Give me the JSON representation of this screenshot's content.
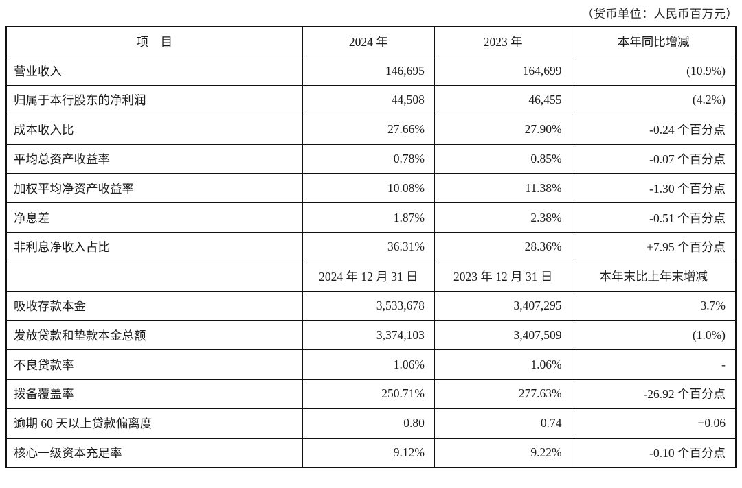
{
  "note": "（货币单位：人民币百万元）",
  "colors": {
    "border": "#111111",
    "text": "#1c1c1c",
    "background": "#ffffff"
  },
  "table": {
    "header_row": {
      "label": "项　目",
      "y2024": "2024 年",
      "y2023": "2023 年",
      "change": "本年同比增减"
    },
    "rows": [
      {
        "label": "营业收入",
        "y2024": "146,695",
        "y2023": "164,699",
        "change": "(10.9%)"
      },
      {
        "label": "归属于本行股东的净利润",
        "y2024": "44,508",
        "y2023": "46,455",
        "change": "(4.2%)"
      },
      {
        "label": "成本收入比",
        "y2024": "27.66%",
        "y2023": "27.90%",
        "change": "-0.24 个百分点"
      },
      {
        "label": "平均总资产收益率",
        "y2024": "0.78%",
        "y2023": "0.85%",
        "change": "-0.07 个百分点"
      },
      {
        "label": "加权平均净资产收益率",
        "y2024": "10.08%",
        "y2023": "11.38%",
        "change": "-1.30 个百分点"
      },
      {
        "label": "净息差",
        "y2024": "1.87%",
        "y2023": "2.38%",
        "change": "-0.51 个百分点"
      },
      {
        "label": "非利息净收入占比",
        "y2024": "36.31%",
        "y2023": "28.36%",
        "change": "+7.95 个百分点"
      }
    ],
    "mid_header_row": {
      "label": "",
      "y2024": "2024 年 12 月 31 日",
      "y2023": "2023 年 12 月 31 日",
      "change": "本年末比上年末增减"
    },
    "rows2": [
      {
        "label": "吸收存款本金",
        "y2024": "3,533,678",
        "y2023": "3,407,295",
        "change": "3.7%"
      },
      {
        "label": "发放贷款和垫款本金总额",
        "y2024": "3,374,103",
        "y2023": "3,407,509",
        "change": "(1.0%)"
      },
      {
        "label": "不良贷款率",
        "y2024": "1.06%",
        "y2023": "1.06%",
        "change": "-"
      },
      {
        "label": "拨备覆盖率",
        "y2024": "250.71%",
        "y2023": "277.63%",
        "change": "-26.92 个百分点"
      },
      {
        "label": "逾期 60 天以上贷款偏离度",
        "y2024": "0.80",
        "y2023": "0.74",
        "change": "+0.06"
      },
      {
        "label": "核心一级资本充足率",
        "y2024": "9.12%",
        "y2023": "9.22%",
        "change": "-0.10 个百分点"
      }
    ]
  }
}
